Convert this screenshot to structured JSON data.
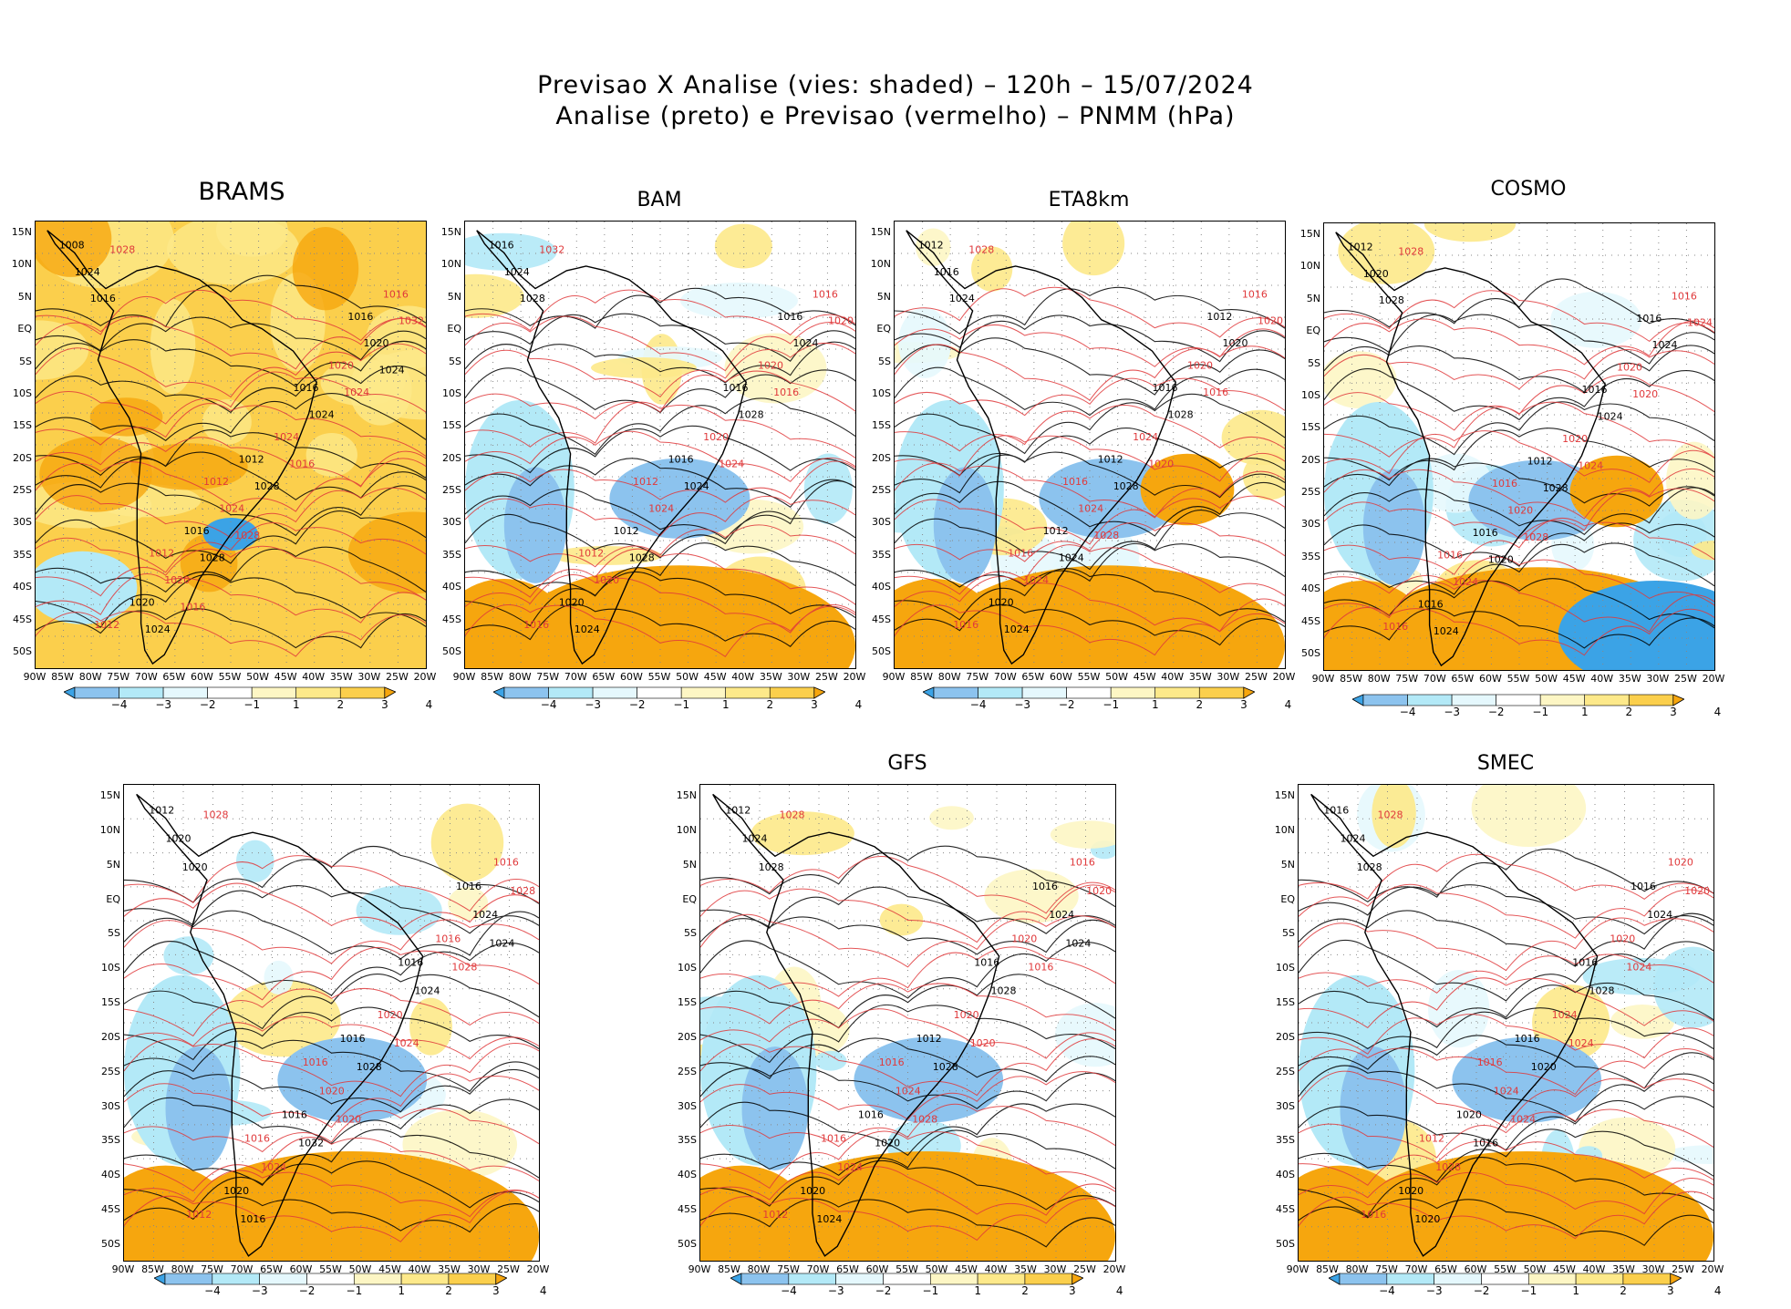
{
  "title": {
    "line1": "Previsao X Analise (vies: shaded) – 120h – 15/07/2024",
    "line2": "Analise (preto) e Previsao (vermelho) – PNMM (hPa)"
  },
  "lat_labels": [
    "15N",
    "10N",
    "5N",
    "EQ",
    "5S",
    "10S",
    "15S",
    "20S",
    "25S",
    "30S",
    "35S",
    "40S",
    "45S",
    "50S"
  ],
  "lon_labels": [
    "90W",
    "85W",
    "80W",
    "75W",
    "70W",
    "65W",
    "60W",
    "55W",
    "50W",
    "45W",
    "40W",
    "35W",
    "30W",
    "25W",
    "20W"
  ],
  "colorbar": {
    "labels": [
      "−4",
      "−3",
      "−2",
      "−1",
      "1",
      "2",
      "3",
      "4"
    ],
    "colors": {
      "n4": "#3ba3e6",
      "n3": "#8cc3ee",
      "n2": "#b3e9f7",
      "n1": "#e5f8fd",
      "zero": "#ffffff",
      "p1": "#fdf6c4",
      "p2": "#fde98a",
      "p3": "#fbcf4c",
      "p4": "#f6a60e"
    }
  },
  "panels": [
    {
      "id": "brams",
      "name": "BRAMS",
      "contours": [
        "1008",
        "1012",
        "1016",
        "1012",
        "1016",
        "1012",
        "1012",
        "1016",
        "1016",
        "1020",
        "1020",
        "1024",
        "1024",
        "1024",
        "1020",
        "1020",
        "1024",
        "1028",
        "1028",
        "1032",
        "1028",
        "1024",
        "1024",
        "1016",
        "1016",
        "1028",
        "1024",
        "1016"
      ]
    },
    {
      "id": "bam",
      "name": "BAM",
      "contours": [
        "1016",
        "1012",
        "1016",
        "1012",
        "1016",
        "1016",
        "1016",
        "1016",
        "1012",
        "1020",
        "1020",
        "1020",
        "1024",
        "1024",
        "1024",
        "1020",
        "1028",
        "1032",
        "1024",
        "1020",
        "1028",
        "1016",
        "1024",
        "1024",
        "1028"
      ]
    },
    {
      "id": "eta8km",
      "name": "ETA8km",
      "contours": [
        "1012",
        "1016",
        "1012",
        "1016",
        "1016",
        "1016",
        "1012",
        "1016",
        "1012",
        "1020",
        "1020",
        "1024",
        "1016",
        "1024",
        "1020",
        "1024",
        "1028",
        "1028",
        "1028",
        "1020",
        "1024",
        "1016",
        "1024",
        "1020",
        "1024",
        "1028"
      ]
    },
    {
      "id": "cosmo",
      "name": "COSMO",
      "contours": [
        "1012",
        "1016",
        "1016",
        "1016",
        "1016",
        "1016",
        "1012",
        "1016",
        "1016",
        "1020",
        "1016",
        "1020",
        "1020",
        "1020",
        "1024",
        "1024",
        "1024",
        "1028",
        "1028",
        "1024",
        "1020",
        "1020",
        "1024",
        "1024",
        "1028",
        "1028"
      ]
    },
    {
      "id": "bottom-left",
      "name": "",
      "contours": [
        "1012",
        "1016",
        "1016",
        "1016",
        "1016",
        "1012",
        "1016",
        "1016",
        "1016",
        "1016",
        "1020",
        "1020",
        "1020",
        "1020",
        "1024",
        "1024",
        "1024",
        "1028",
        "1028",
        "1028",
        "1032",
        "1028",
        "1016",
        "1024",
        "1020",
        "1020",
        "1024"
      ]
    },
    {
      "id": "gfs",
      "name": "GFS",
      "contours": [
        "1012",
        "1016",
        "1016",
        "1016",
        "1016",
        "1012",
        "1012",
        "1016",
        "1016",
        "1020",
        "1020",
        "1020",
        "1024",
        "1024",
        "1024",
        "1024",
        "1028",
        "1028",
        "1028",
        "1020",
        "1020",
        "1016",
        "1024",
        "1020",
        "1028",
        "1028",
        "1024"
      ]
    },
    {
      "id": "smec",
      "name": "SMEC",
      "contours": [
        "1016",
        "1016",
        "1016",
        "1012",
        "1016",
        "1016",
        "1016",
        "1020",
        "1020",
        "1020",
        "1020",
        "1024",
        "1024",
        "1024",
        "1024",
        "1028",
        "1028",
        "1028",
        "1020",
        "1020",
        "1016",
        "1024",
        "1020",
        "1024",
        "1028",
        "1024"
      ]
    }
  ]
}
